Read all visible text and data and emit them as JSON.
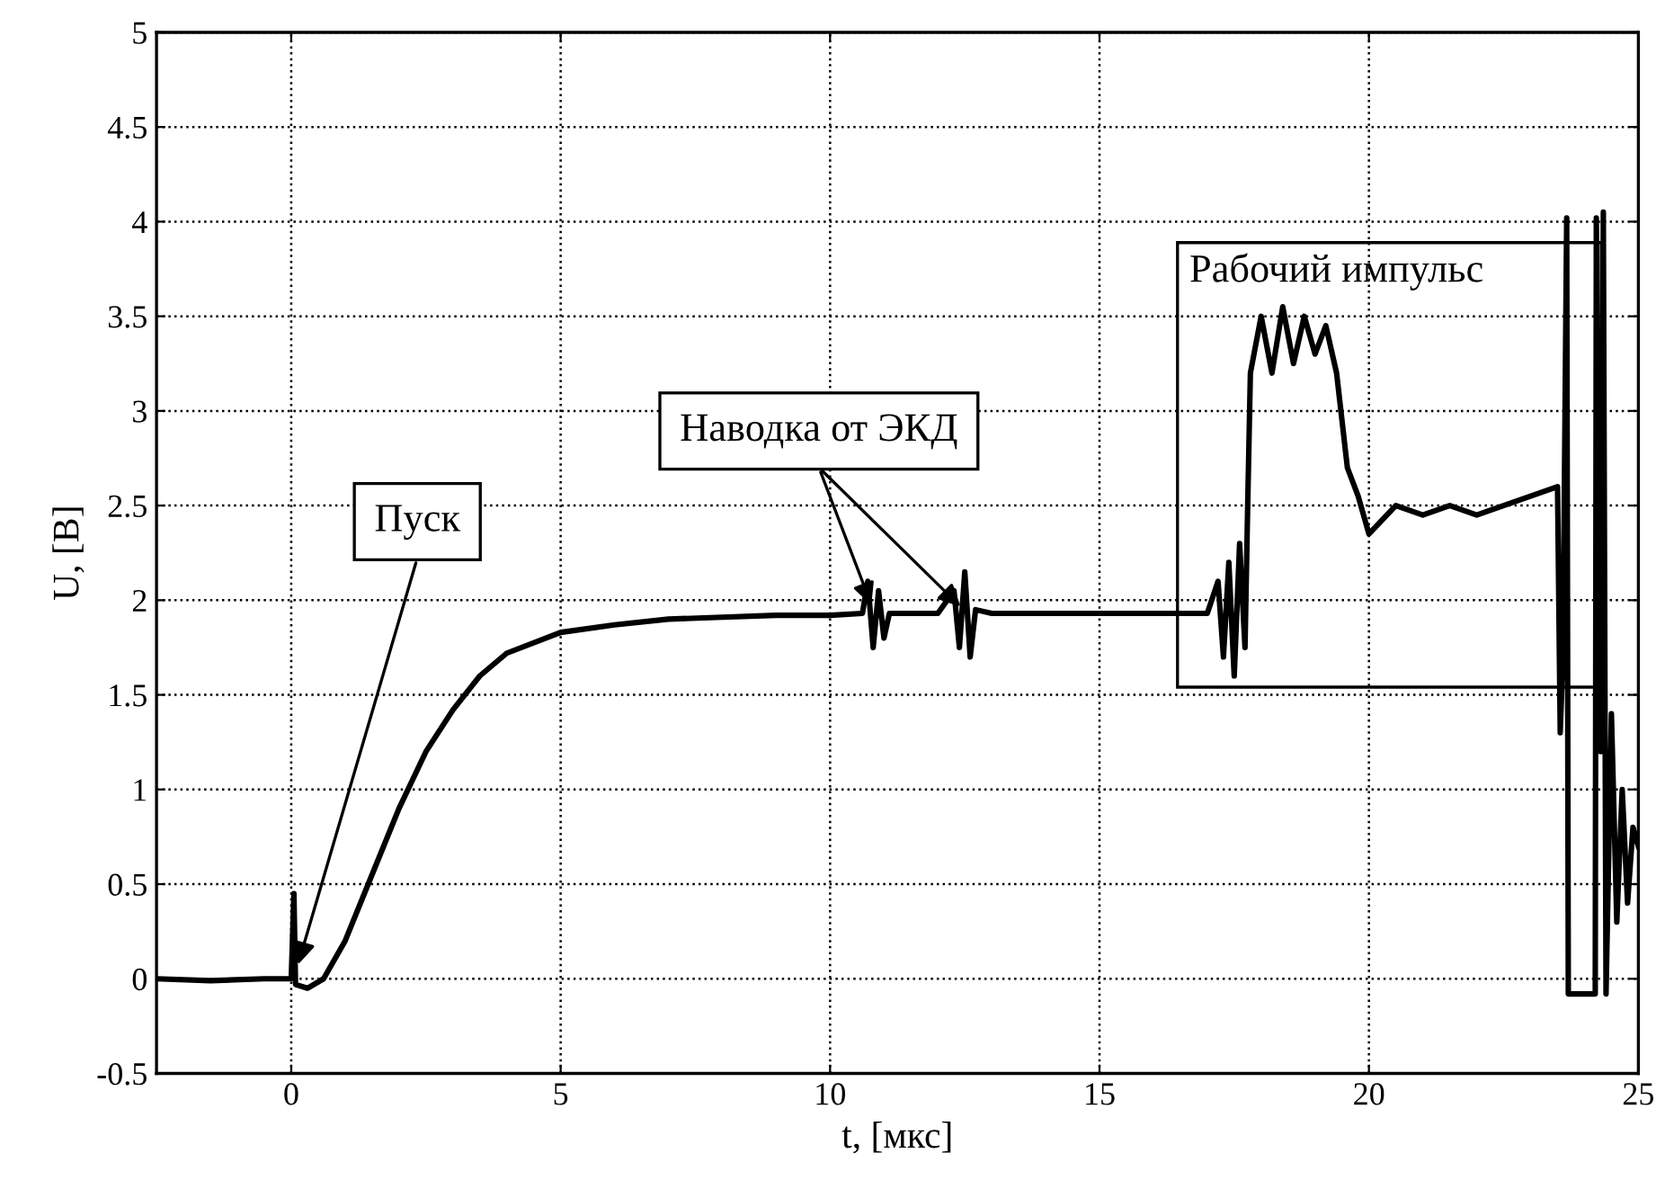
{
  "chart_data": {
    "type": "line",
    "xlabel": "t, [мкс]",
    "ylabel": "U, [В]",
    "xlim": [
      -2.5,
      25
    ],
    "xticks": [
      0,
      5,
      10,
      15,
      20,
      25
    ],
    "ylim": [
      -0.5,
      5
    ],
    "yticks": [
      -0.5,
      0,
      0.5,
      1,
      1.5,
      2,
      2.5,
      3,
      3.5,
      4,
      4.5,
      5
    ],
    "grid": true,
    "marker": "none",
    "line_style": "solid",
    "series": [
      {
        "color": "#000000",
        "x": [
          -2.5,
          -1.5,
          -0.5,
          0,
          0.05,
          0.08,
          0.3,
          0.6,
          1.0,
          1.5,
          2.0,
          2.5,
          3.0,
          3.5,
          4,
          5,
          6,
          7,
          8,
          9,
          10,
          10.6,
          10.7,
          10.8,
          10.9,
          11.0,
          11.1,
          12.0,
          12.3,
          12.4,
          12.5,
          12.6,
          12.7,
          13,
          15,
          17.0,
          17.2,
          17.3,
          17.4,
          17.5,
          17.6,
          17.7,
          17.75,
          17.8,
          18.0,
          18.2,
          18.4,
          18.6,
          18.8,
          19.0,
          19.2,
          19.4,
          19.6,
          19.8,
          20.0,
          20.5,
          21,
          21.5,
          22,
          22.5,
          23,
          23.5,
          23.55,
          23.6,
          23.67,
          23.7,
          24.2,
          24.22,
          24.3,
          24.35,
          24.4,
          24.5,
          24.6,
          24.7,
          24.8,
          24.9,
          25
        ],
        "values": [
          0,
          -0.01,
          0,
          0,
          0.45,
          -0.03,
          -0.05,
          0,
          0.2,
          0.55,
          0.9,
          1.2,
          1.42,
          1.6,
          1.72,
          1.83,
          1.87,
          1.9,
          1.91,
          1.92,
          1.92,
          1.93,
          2.1,
          1.75,
          2.05,
          1.8,
          1.93,
          1.93,
          2.05,
          1.75,
          2.15,
          1.7,
          1.95,
          1.93,
          1.93,
          1.93,
          2.1,
          1.7,
          2.2,
          1.6,
          2.3,
          1.75,
          2.5,
          3.2,
          3.5,
          3.2,
          3.55,
          3.25,
          3.5,
          3.3,
          3.45,
          3.2,
          2.7,
          2.55,
          2.35,
          2.5,
          2.45,
          2.5,
          2.45,
          2.5,
          2.55,
          2.6,
          1.3,
          1.7,
          4.02,
          -0.08,
          -0.08,
          4.02,
          1.2,
          4.05,
          -0.08,
          1.4,
          0.3,
          1.0,
          0.4,
          0.8,
          0.7
        ]
      }
    ],
    "annotations": [
      {
        "text": "Пуск",
        "x": 0.1,
        "y": 0.05
      },
      {
        "text": "Наводка от ЭКД",
        "x": 10.8,
        "y": 1.95
      },
      "Рабочий импульс"
    ]
  }
}
